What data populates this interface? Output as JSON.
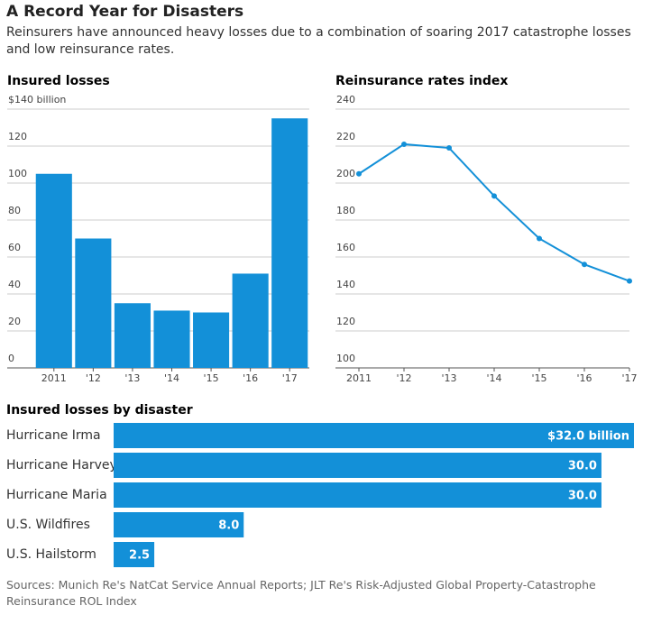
{
  "title": "A Record Year for Disasters",
  "subtitle": "Reinsurers have announced heavy losses due to a combination of soaring 2017 catastrophe losses and low reinsurance rates.",
  "source": "Sources: Munich Re's NatCat Service Annual Reports; JLT Re's Risk-Adjusted Global Property-Catastrophe Reinsurance ROL Index",
  "chart_data": [
    {
      "type": "bar",
      "title": "Insured losses",
      "color": "#1390d8",
      "categories": [
        "2011",
        "'12",
        "'13",
        "'14",
        "'15",
        "'16",
        "'17"
      ],
      "values": [
        105,
        70,
        35,
        31,
        30,
        51,
        135
      ],
      "ylim": [
        0,
        140
      ],
      "yticks": [
        0,
        20,
        40,
        60,
        80,
        100,
        120,
        {
          "value": 140,
          "label": "$140 billion"
        }
      ],
      "grid": true
    },
    {
      "type": "line",
      "title": "Reinsurance rates index",
      "color": "#1390d8",
      "categories": [
        "2011",
        "'12",
        "'13",
        "'14",
        "'15",
        "'16",
        "'17"
      ],
      "values": [
        205,
        221,
        219,
        193,
        170,
        156,
        147
      ],
      "ylim": [
        100,
        240
      ],
      "yticks": [
        100,
        120,
        140,
        160,
        180,
        200,
        220,
        240
      ],
      "grid": true
    },
    {
      "type": "hbar",
      "title": "Insured losses by disaster",
      "color": "#1390d8",
      "categories": [
        "Hurricane Irma",
        "Hurricane Harvey",
        "Hurricane Maria",
        "U.S. Wildfires",
        "U.S. Hailstorm"
      ],
      "values": [
        32.0,
        30.0,
        30.0,
        8.0,
        2.5
      ],
      "value_labels": [
        "$32.0 billion",
        "30.0",
        "30.0",
        "8.0",
        "2.5"
      ]
    }
  ]
}
